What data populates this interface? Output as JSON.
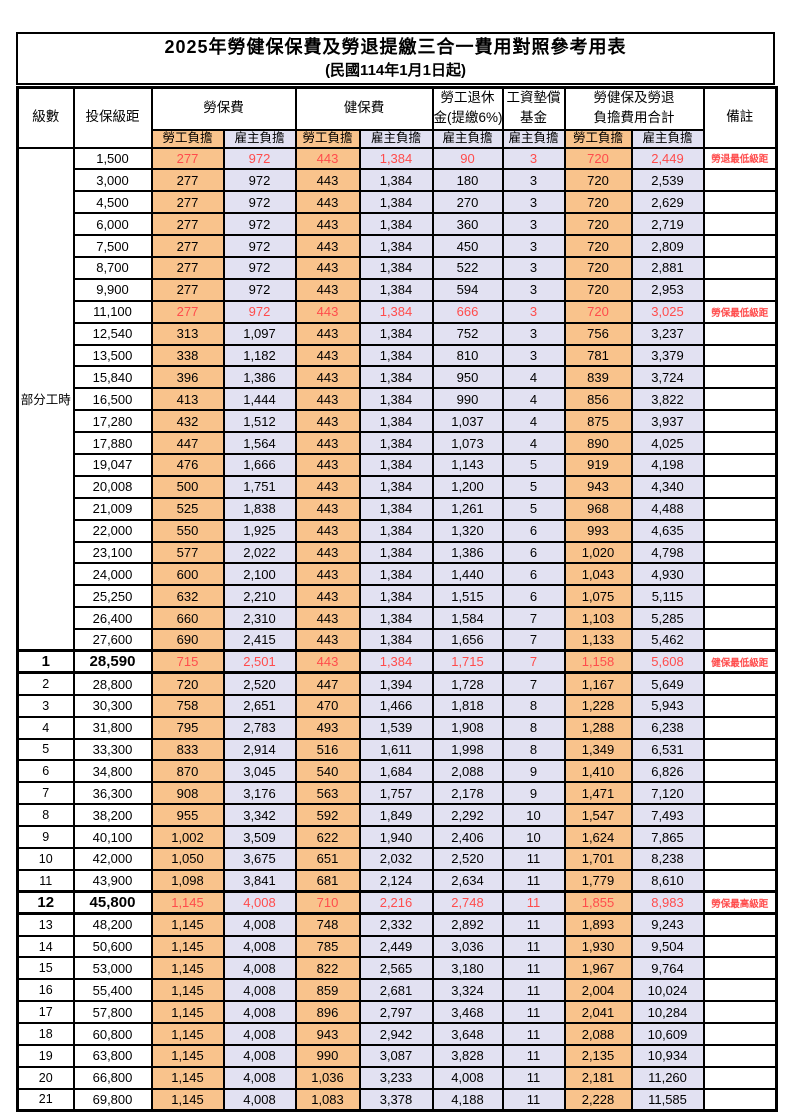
{
  "title": "2025年勞健保保費及勞退提繳三合一費用對照參考用表",
  "subtitle": "(民國114年1月1日起)",
  "header": {
    "level": "級數",
    "bracket": "投保級距",
    "labor_ins": "勞保費",
    "health_ins": "健保費",
    "pension_line1": "勞工退休",
    "pension_line2": "金(提繳6%)",
    "wage_fund_line1": "工資墊償",
    "wage_fund_line2": "基金",
    "total_line1": "勞健保及勞退",
    "total_line2": "負擔費用合計",
    "remark": "備註",
    "employee": "勞工負擔",
    "employer": "雇主負擔"
  },
  "colors": {
    "employee_bg": "#F9C38C",
    "employer_bg": "#E2E1F2",
    "highlight_text": "#FF4C4C"
  },
  "part_time": {
    "label": "部分工時",
    "span": 23
  },
  "rows": [
    {
      "level": null,
      "bracket": "1,500",
      "values": [
        "277",
        "972",
        "443",
        "1,384",
        "90",
        "3",
        "720",
        "2,449"
      ],
      "remark": "勞退最低級距",
      "red": true,
      "bold": false
    },
    {
      "level": null,
      "bracket": "3,000",
      "values": [
        "277",
        "972",
        "443",
        "1,384",
        "180",
        "3",
        "720",
        "2,539"
      ],
      "remark": "",
      "red": false,
      "bold": false
    },
    {
      "level": null,
      "bracket": "4,500",
      "values": [
        "277",
        "972",
        "443",
        "1,384",
        "270",
        "3",
        "720",
        "2,629"
      ],
      "remark": "",
      "red": false,
      "bold": false
    },
    {
      "level": null,
      "bracket": "6,000",
      "values": [
        "277",
        "972",
        "443",
        "1,384",
        "360",
        "3",
        "720",
        "2,719"
      ],
      "remark": "",
      "red": false,
      "bold": false
    },
    {
      "level": null,
      "bracket": "7,500",
      "values": [
        "277",
        "972",
        "443",
        "1,384",
        "450",
        "3",
        "720",
        "2,809"
      ],
      "remark": "",
      "red": false,
      "bold": false
    },
    {
      "level": null,
      "bracket": "8,700",
      "values": [
        "277",
        "972",
        "443",
        "1,384",
        "522",
        "3",
        "720",
        "2,881"
      ],
      "remark": "",
      "red": false,
      "bold": false
    },
    {
      "level": null,
      "bracket": "9,900",
      "values": [
        "277",
        "972",
        "443",
        "1,384",
        "594",
        "3",
        "720",
        "2,953"
      ],
      "remark": "",
      "red": false,
      "bold": false
    },
    {
      "level": null,
      "bracket": "11,100",
      "values": [
        "277",
        "972",
        "443",
        "1,384",
        "666",
        "3",
        "720",
        "3,025"
      ],
      "remark": "勞保最低級距",
      "red": true,
      "bold": false
    },
    {
      "level": null,
      "bracket": "12,540",
      "values": [
        "313",
        "1,097",
        "443",
        "1,384",
        "752",
        "3",
        "756",
        "3,237"
      ],
      "remark": "",
      "red": false,
      "bold": false
    },
    {
      "level": null,
      "bracket": "13,500",
      "values": [
        "338",
        "1,182",
        "443",
        "1,384",
        "810",
        "3",
        "781",
        "3,379"
      ],
      "remark": "",
      "red": false,
      "bold": false
    },
    {
      "level": null,
      "bracket": "15,840",
      "values": [
        "396",
        "1,386",
        "443",
        "1,384",
        "950",
        "4",
        "839",
        "3,724"
      ],
      "remark": "",
      "red": false,
      "bold": false
    },
    {
      "level": null,
      "bracket": "16,500",
      "values": [
        "413",
        "1,444",
        "443",
        "1,384",
        "990",
        "4",
        "856",
        "3,822"
      ],
      "remark": "",
      "red": false,
      "bold": false
    },
    {
      "level": null,
      "bracket": "17,280",
      "values": [
        "432",
        "1,512",
        "443",
        "1,384",
        "1,037",
        "4",
        "875",
        "3,937"
      ],
      "remark": "",
      "red": false,
      "bold": false
    },
    {
      "level": null,
      "bracket": "17,880",
      "values": [
        "447",
        "1,564",
        "443",
        "1,384",
        "1,073",
        "4",
        "890",
        "4,025"
      ],
      "remark": "",
      "red": false,
      "bold": false
    },
    {
      "level": null,
      "bracket": "19,047",
      "values": [
        "476",
        "1,666",
        "443",
        "1,384",
        "1,143",
        "5",
        "919",
        "4,198"
      ],
      "remark": "",
      "red": false,
      "bold": false
    },
    {
      "level": null,
      "bracket": "20,008",
      "values": [
        "500",
        "1,751",
        "443",
        "1,384",
        "1,200",
        "5",
        "943",
        "4,340"
      ],
      "remark": "",
      "red": false,
      "bold": false
    },
    {
      "level": null,
      "bracket": "21,009",
      "values": [
        "525",
        "1,838",
        "443",
        "1,384",
        "1,261",
        "5",
        "968",
        "4,488"
      ],
      "remark": "",
      "red": false,
      "bold": false
    },
    {
      "level": null,
      "bracket": "22,000",
      "values": [
        "550",
        "1,925",
        "443",
        "1,384",
        "1,320",
        "6",
        "993",
        "4,635"
      ],
      "remark": "",
      "red": false,
      "bold": false
    },
    {
      "level": null,
      "bracket": "23,100",
      "values": [
        "577",
        "2,022",
        "443",
        "1,384",
        "1,386",
        "6",
        "1,020",
        "4,798"
      ],
      "remark": "",
      "red": false,
      "bold": false
    },
    {
      "level": null,
      "bracket": "24,000",
      "values": [
        "600",
        "2,100",
        "443",
        "1,384",
        "1,440",
        "6",
        "1,043",
        "4,930"
      ],
      "remark": "",
      "red": false,
      "bold": false
    },
    {
      "level": null,
      "bracket": "25,250",
      "values": [
        "632",
        "2,210",
        "443",
        "1,384",
        "1,515",
        "6",
        "1,075",
        "5,115"
      ],
      "remark": "",
      "red": false,
      "bold": false
    },
    {
      "level": null,
      "bracket": "26,400",
      "values": [
        "660",
        "2,310",
        "443",
        "1,384",
        "1,584",
        "7",
        "1,103",
        "5,285"
      ],
      "remark": "",
      "red": false,
      "bold": false
    },
    {
      "level": null,
      "bracket": "27,600",
      "values": [
        "690",
        "2,415",
        "443",
        "1,384",
        "1,656",
        "7",
        "1,133",
        "5,462"
      ],
      "remark": "",
      "red": false,
      "bold": false
    },
    {
      "level": "1",
      "bracket": "28,590",
      "values": [
        "715",
        "2,501",
        "443",
        "1,384",
        "1,715",
        "7",
        "1,158",
        "5,608"
      ],
      "remark": "健保最低級距",
      "red": true,
      "bold": true
    },
    {
      "level": "2",
      "bracket": "28,800",
      "values": [
        "720",
        "2,520",
        "447",
        "1,394",
        "1,728",
        "7",
        "1,167",
        "5,649"
      ],
      "remark": "",
      "red": false,
      "bold": false
    },
    {
      "level": "3",
      "bracket": "30,300",
      "values": [
        "758",
        "2,651",
        "470",
        "1,466",
        "1,818",
        "8",
        "1,228",
        "5,943"
      ],
      "remark": "",
      "red": false,
      "bold": false
    },
    {
      "level": "4",
      "bracket": "31,800",
      "values": [
        "795",
        "2,783",
        "493",
        "1,539",
        "1,908",
        "8",
        "1,288",
        "6,238"
      ],
      "remark": "",
      "red": false,
      "bold": false
    },
    {
      "level": "5",
      "bracket": "33,300",
      "values": [
        "833",
        "2,914",
        "516",
        "1,611",
        "1,998",
        "8",
        "1,349",
        "6,531"
      ],
      "remark": "",
      "red": false,
      "bold": false
    },
    {
      "level": "6",
      "bracket": "34,800",
      "values": [
        "870",
        "3,045",
        "540",
        "1,684",
        "2,088",
        "9",
        "1,410",
        "6,826"
      ],
      "remark": "",
      "red": false,
      "bold": false
    },
    {
      "level": "7",
      "bracket": "36,300",
      "values": [
        "908",
        "3,176",
        "563",
        "1,757",
        "2,178",
        "9",
        "1,471",
        "7,120"
      ],
      "remark": "",
      "red": false,
      "bold": false
    },
    {
      "level": "8",
      "bracket": "38,200",
      "values": [
        "955",
        "3,342",
        "592",
        "1,849",
        "2,292",
        "10",
        "1,547",
        "7,493"
      ],
      "remark": "",
      "red": false,
      "bold": false
    },
    {
      "level": "9",
      "bracket": "40,100",
      "values": [
        "1,002",
        "3,509",
        "622",
        "1,940",
        "2,406",
        "10",
        "1,624",
        "7,865"
      ],
      "remark": "",
      "red": false,
      "bold": false
    },
    {
      "level": "10",
      "bracket": "42,000",
      "values": [
        "1,050",
        "3,675",
        "651",
        "2,032",
        "2,520",
        "11",
        "1,701",
        "8,238"
      ],
      "remark": "",
      "red": false,
      "bold": false
    },
    {
      "level": "11",
      "bracket": "43,900",
      "values": [
        "1,098",
        "3,841",
        "681",
        "2,124",
        "2,634",
        "11",
        "1,779",
        "8,610"
      ],
      "remark": "",
      "red": false,
      "bold": false
    },
    {
      "level": "12",
      "bracket": "45,800",
      "values": [
        "1,145",
        "4,008",
        "710",
        "2,216",
        "2,748",
        "11",
        "1,855",
        "8,983"
      ],
      "remark": "勞保最高級距",
      "red": true,
      "bold": true
    },
    {
      "level": "13",
      "bracket": "48,200",
      "values": [
        "1,145",
        "4,008",
        "748",
        "2,332",
        "2,892",
        "11",
        "1,893",
        "9,243"
      ],
      "remark": "",
      "red": false,
      "bold": false
    },
    {
      "level": "14",
      "bracket": "50,600",
      "values": [
        "1,145",
        "4,008",
        "785",
        "2,449",
        "3,036",
        "11",
        "1,930",
        "9,504"
      ],
      "remark": "",
      "red": false,
      "bold": false
    },
    {
      "level": "15",
      "bracket": "53,000",
      "values": [
        "1,145",
        "4,008",
        "822",
        "2,565",
        "3,180",
        "11",
        "1,967",
        "9,764"
      ],
      "remark": "",
      "red": false,
      "bold": false
    },
    {
      "level": "16",
      "bracket": "55,400",
      "values": [
        "1,145",
        "4,008",
        "859",
        "2,681",
        "3,324",
        "11",
        "2,004",
        "10,024"
      ],
      "remark": "",
      "red": false,
      "bold": false
    },
    {
      "level": "17",
      "bracket": "57,800",
      "values": [
        "1,145",
        "4,008",
        "896",
        "2,797",
        "3,468",
        "11",
        "2,041",
        "10,284"
      ],
      "remark": "",
      "red": false,
      "bold": false
    },
    {
      "level": "18",
      "bracket": "60,800",
      "values": [
        "1,145",
        "4,008",
        "943",
        "2,942",
        "3,648",
        "11",
        "2,088",
        "10,609"
      ],
      "remark": "",
      "red": false,
      "bold": false
    },
    {
      "level": "19",
      "bracket": "63,800",
      "values": [
        "1,145",
        "4,008",
        "990",
        "3,087",
        "3,828",
        "11",
        "2,135",
        "10,934"
      ],
      "remark": "",
      "red": false,
      "bold": false
    },
    {
      "level": "20",
      "bracket": "66,800",
      "values": [
        "1,145",
        "4,008",
        "1,036",
        "3,233",
        "4,008",
        "11",
        "2,181",
        "11,260"
      ],
      "remark": "",
      "red": false,
      "bold": false
    },
    {
      "level": "21",
      "bracket": "69,800",
      "values": [
        "1,145",
        "4,008",
        "1,083",
        "3,378",
        "4,188",
        "11",
        "2,228",
        "11,585"
      ],
      "remark": "",
      "red": false,
      "bold": false
    }
  ]
}
